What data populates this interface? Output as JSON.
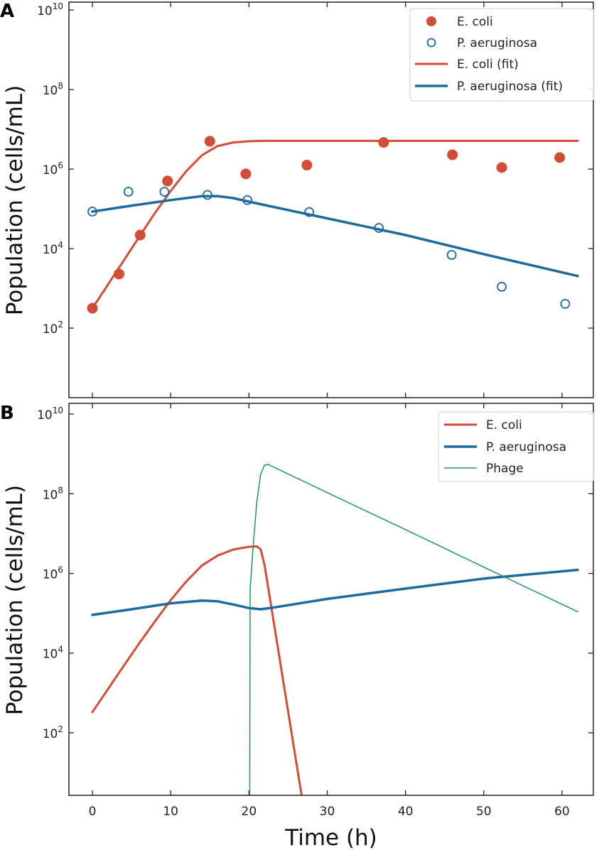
{
  "colors": {
    "ecoli": "#D14D37",
    "paeruginosa": "#1C6A9E",
    "phage": "#21965E",
    "axis": "#222222"
  },
  "chart_data": [
    {
      "panel": "A",
      "type": "scatter+line",
      "xlabel": "",
      "ylabel": "Population (cells/mL)",
      "xlim": [
        -3,
        64
      ],
      "ylim_log10": [
        0.25,
        10.2
      ],
      "yscale": "log",
      "xticks": [
        0,
        10,
        20,
        30,
        40,
        50,
        60
      ],
      "yticks": [
        {
          "base": "10",
          "exp": "2",
          "log10": 2
        },
        {
          "base": "10",
          "exp": "4",
          "log10": 4
        },
        {
          "base": "10",
          "exp": "6",
          "log10": 6
        },
        {
          "base": "10",
          "exp": "8",
          "log10": 8
        },
        {
          "base": "10",
          "exp": "10",
          "log10": 10
        }
      ],
      "legend_position": "top-right",
      "series": [
        {
          "name": "E. coli",
          "kind": "filled-marker",
          "color_key": "ecoli",
          "x": [
            0,
            3.4,
            6.1,
            9.6,
            15,
            19.6,
            27.4,
            37.2,
            46,
            52.3,
            59.7
          ],
          "log10_y": [
            2.5,
            3.36,
            4.34,
            5.7,
            6.7,
            5.88,
            6.1,
            6.67,
            6.36,
            6.04,
            6.29
          ]
        },
        {
          "name": "P. aeruginosa",
          "kind": "open-marker",
          "color_key": "paeruginosa",
          "x": [
            0,
            4.6,
            9.2,
            14.7,
            19.8,
            27.7,
            36.6,
            45.9,
            52.3,
            60.4
          ],
          "log10_y": [
            4.93,
            5.43,
            5.43,
            5.35,
            5.22,
            4.92,
            4.52,
            3.84,
            3.04,
            2.61
          ]
        },
        {
          "name": "E. coli (fit)",
          "kind": "line",
          "color_key": "ecoli",
          "width": 3,
          "x": [
            0,
            2,
            4,
            6,
            8,
            10,
            12,
            14,
            16,
            18,
            20,
            22,
            25,
            30,
            40,
            50,
            62
          ],
          "log10_y": [
            2.5,
            3.1,
            3.7,
            4.3,
            4.9,
            5.45,
            5.95,
            6.35,
            6.58,
            6.67,
            6.7,
            6.71,
            6.71,
            6.71,
            6.71,
            6.71,
            6.71
          ]
        },
        {
          "name": "P. aeruginosa (fit)",
          "kind": "line",
          "color_key": "paeruginosa",
          "width": 3.5,
          "x": [
            0,
            5,
            10,
            14,
            16,
            18,
            20,
            25,
            30,
            40,
            50,
            62
          ],
          "log10_y": [
            4.93,
            5.08,
            5.22,
            5.32,
            5.32,
            5.27,
            5.18,
            4.97,
            4.76,
            4.34,
            3.86,
            3.31
          ]
        }
      ]
    },
    {
      "panel": "B",
      "type": "line",
      "xlabel": "Time (h)",
      "ylabel": "Population (cells/mL)",
      "xlim": [
        -3,
        64
      ],
      "ylim_log10": [
        0.43,
        10.27
      ],
      "yscale": "log",
      "xticks": [
        0,
        10,
        20,
        30,
        40,
        50,
        60
      ],
      "yticks": [
        {
          "base": "10",
          "exp": "2",
          "log10": 2
        },
        {
          "base": "10",
          "exp": "4",
          "log10": 4
        },
        {
          "base": "10",
          "exp": "6",
          "log10": 6
        },
        {
          "base": "10",
          "exp": "8",
          "log10": 8
        },
        {
          "base": "10",
          "exp": "10",
          "log10": 10
        }
      ],
      "legend_position": "top-right",
      "series": [
        {
          "name": "E. coli",
          "kind": "line",
          "color_key": "ecoli",
          "width": 3,
          "x": [
            0,
            2,
            4,
            6,
            8,
            10,
            12,
            14,
            16,
            18,
            20,
            21,
            21.5,
            22,
            27
          ],
          "log10_y": [
            2.52,
            3.1,
            3.68,
            4.25,
            4.8,
            5.33,
            5.8,
            6.2,
            6.45,
            6.6,
            6.67,
            6.68,
            6.6,
            6.2,
            0.1
          ]
        },
        {
          "name": "P. aeruginosa",
          "kind": "line",
          "color_key": "paeruginosa",
          "width": 3.5,
          "x": [
            0,
            5,
            10,
            14,
            16,
            18,
            20,
            21.5,
            23,
            30,
            40,
            50,
            62
          ],
          "log10_y": [
            4.96,
            5.1,
            5.25,
            5.32,
            5.3,
            5.22,
            5.13,
            5.1,
            5.14,
            5.36,
            5.62,
            5.87,
            6.09
          ]
        },
        {
          "name": "Phage",
          "kind": "line",
          "color_key": "phage",
          "width": 1.5,
          "x": [
            20.1,
            20.15,
            20.5,
            21,
            21.5,
            22,
            22.4,
            30,
            40,
            50,
            62
          ],
          "log10_y": [
            0.0,
            5.6,
            6.6,
            7.8,
            8.5,
            8.72,
            8.74,
            8.03,
            7.1,
            6.16,
            5.04
          ]
        }
      ]
    }
  ],
  "panels": {
    "a": {
      "letter": "A",
      "ylabel": "Population (cells/mL)",
      "legend": [
        "E. coli",
        "P. aeruginosa",
        "E. coli (fit)",
        "P. aeruginosa (fit)"
      ]
    },
    "b": {
      "letter": "B",
      "ylabel": "Population (cells/mL)",
      "xlabel": "Time (h)",
      "legend": [
        "E. coli",
        "P. aeruginosa",
        "Phage"
      ]
    }
  }
}
